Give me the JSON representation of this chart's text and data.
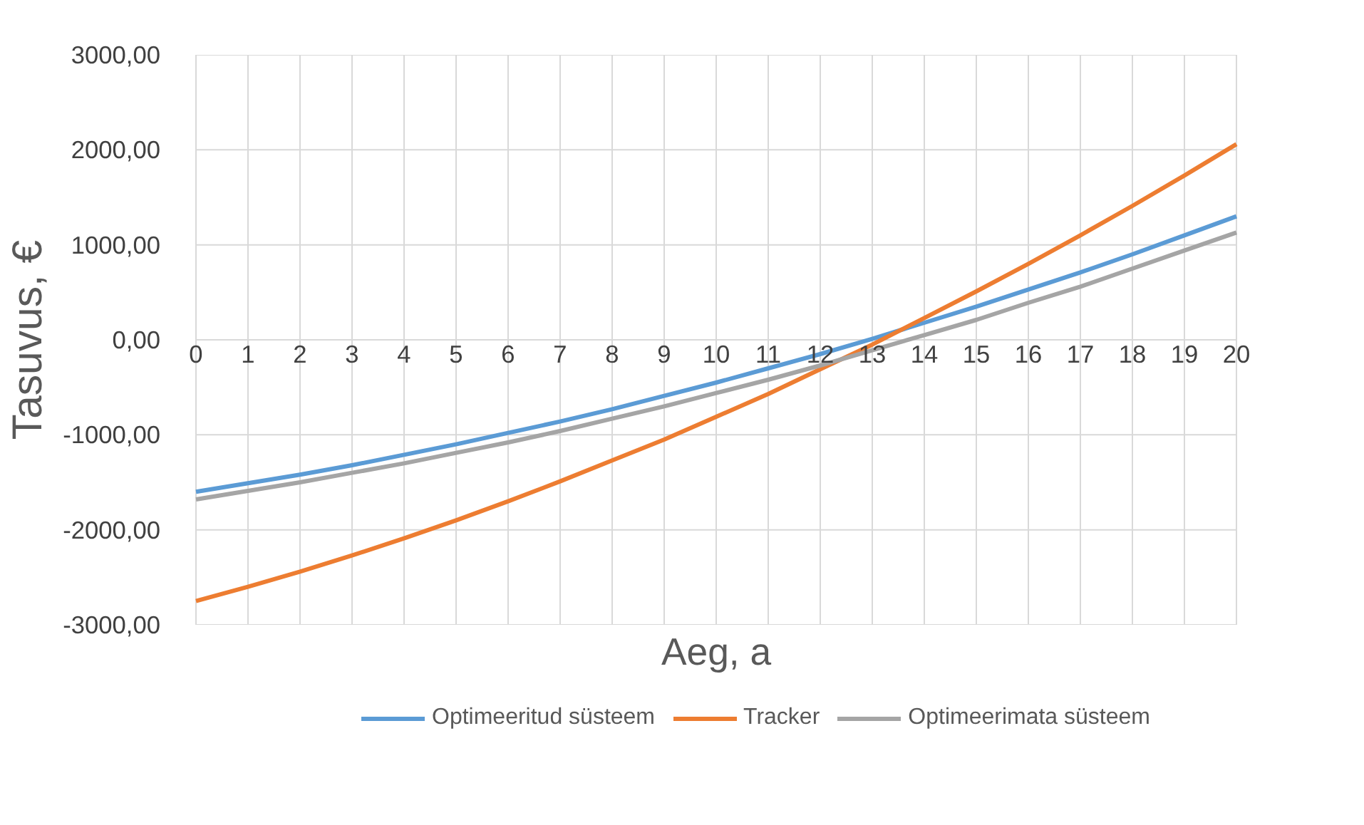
{
  "chart_data": {
    "type": "line",
    "xlabel": "Aeg, a",
    "ylabel": "Tasuvus, €",
    "x": [
      0,
      1,
      2,
      3,
      4,
      5,
      6,
      7,
      8,
      9,
      10,
      11,
      12,
      13,
      14,
      15,
      16,
      17,
      18,
      19,
      20
    ],
    "series": [
      {
        "name": "Optimeeritud süsteem",
        "color": "#5b9bd5",
        "values": [
          -1600,
          -1510,
          -1420,
          -1320,
          -1210,
          -1100,
          -980,
          -860,
          -730,
          -590,
          -450,
          -300,
          -150,
          10,
          180,
          350,
          530,
          710,
          900,
          1100,
          1300
        ]
      },
      {
        "name": "Tracker",
        "color": "#ed7d31",
        "values": [
          -2750,
          -2600,
          -2440,
          -2270,
          -2090,
          -1900,
          -1700,
          -1490,
          -1270,
          -1050,
          -810,
          -570,
          -310,
          -50,
          230,
          510,
          800,
          1100,
          1410,
          1730,
          2060
        ]
      },
      {
        "name": "Optimeerimata süsteem",
        "color": "#a5a5a5",
        "values": [
          -1680,
          -1590,
          -1500,
          -1400,
          -1300,
          -1190,
          -1080,
          -960,
          -830,
          -700,
          -560,
          -420,
          -270,
          -110,
          50,
          210,
          390,
          560,
          750,
          940,
          1130
        ]
      }
    ],
    "xlim": [
      0,
      20
    ],
    "xticks": [
      0,
      1,
      2,
      3,
      4,
      5,
      6,
      7,
      8,
      9,
      10,
      11,
      12,
      13,
      14,
      15,
      16,
      17,
      18,
      19,
      20
    ],
    "ylim": [
      -3000,
      3000
    ],
    "yticks": [
      {
        "value": -3000,
        "label": "-3000,00"
      },
      {
        "value": -2000,
        "label": "-2000,00"
      },
      {
        "value": -1000,
        "label": "-1000,00"
      },
      {
        "value": 0,
        "label": "0,00"
      },
      {
        "value": 1000,
        "label": "1000,00"
      },
      {
        "value": 2000,
        "label": "2000,00"
      },
      {
        "value": 3000,
        "label": "3000,00"
      }
    ],
    "grid": true,
    "legend": "bottom",
    "marker": "none",
    "line_style": "solid"
  }
}
